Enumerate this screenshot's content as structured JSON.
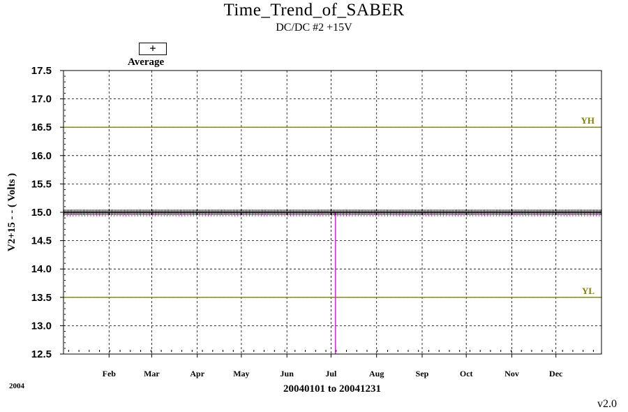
{
  "chart_data": {
    "type": "line",
    "title": "Time_Trend_of_SABER",
    "subtitle": "DC/DC #2 +15V",
    "ylabel": "V2+15  - - ( Volts )",
    "xlabel": "20040101 to 20041231",
    "year_label": "2004",
    "version": "v2.0",
    "ylim": [
      12.5,
      17.5
    ],
    "yticks": [
      "17.5",
      "17.0",
      "16.5",
      "16.0",
      "15.5",
      "15.0",
      "14.5",
      "14.0",
      "13.5",
      "13.0",
      "12.5"
    ],
    "xlim": [
      "2004-01-01",
      "2004-12-31"
    ],
    "month_labels": [
      "Feb",
      "Mar",
      "Apr",
      "May",
      "Jun",
      "Jul",
      "Aug",
      "Sep",
      "Oct",
      "Nov",
      "Dec"
    ],
    "grid": true,
    "legend": {
      "symbol": "+",
      "label": "Average",
      "position": "top-left"
    },
    "limits": [
      {
        "name": "YH",
        "value": 16.5,
        "color": "#808000"
      },
      {
        "name": "YL",
        "value": 13.5,
        "color": "#808000"
      }
    ],
    "series": [
      {
        "name": "Average",
        "marker": "+",
        "color": "#000000",
        "typical_value": 15.0
      },
      {
        "color": "#cc33cc",
        "typical_value": 14.95,
        "dropout": {
          "date": "2004-07-04",
          "value": 12.5
        }
      }
    ],
    "colors": {
      "limit": "#808000",
      "average": "#000000",
      "minimum": "#cc33cc",
      "grid": "#000000"
    }
  }
}
